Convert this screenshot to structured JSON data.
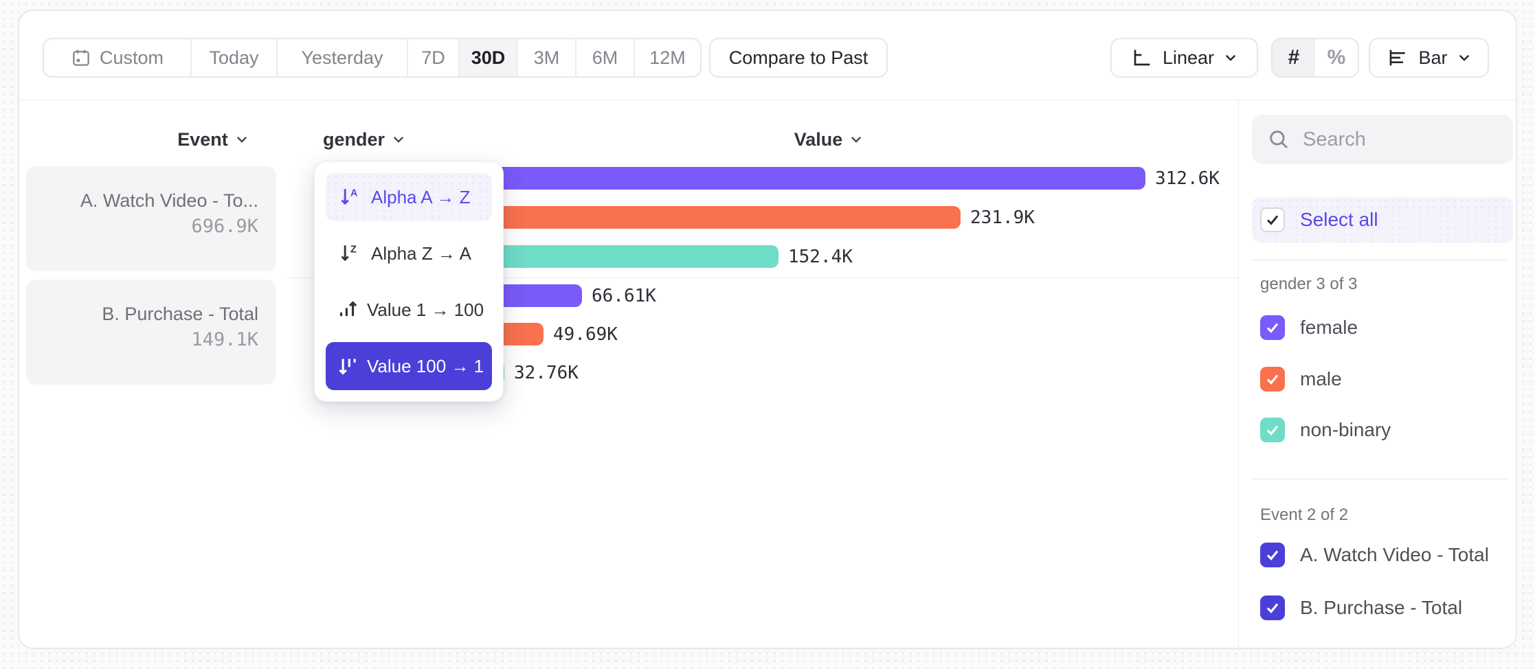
{
  "toolbar": {
    "date_ranges": [
      "Custom",
      "Today",
      "Yesterday",
      "7D",
      "30D",
      "3M",
      "6M",
      "12M"
    ],
    "selected_range": "30D",
    "compare_label": "Compare to Past",
    "scale_label": "Linear",
    "count_toggle": "#",
    "percent_toggle": "%",
    "chart_type_label": "Bar"
  },
  "columns": {
    "event": "Event",
    "breakdown": "gender",
    "value": "Value"
  },
  "event_cards": [
    {
      "title": "A. Watch Video - To...",
      "total": "696.9K"
    },
    {
      "title": "B. Purchase - Total",
      "total": "149.1K"
    }
  ],
  "sort_menu": {
    "items": [
      {
        "label": "Alpha A → Z",
        "icon": "sort-alpha-asc-icon",
        "state": "hovered"
      },
      {
        "label": "Alpha Z → A",
        "icon": "sort-alpha-desc-icon",
        "state": "default"
      },
      {
        "label": "Value 1 → 100",
        "icon": "sort-value-asc-icon",
        "state": "default"
      },
      {
        "label": "Value 100 → 1",
        "icon": "sort-value-desc-icon",
        "state": "selected"
      }
    ]
  },
  "chart_data": {
    "type": "bar",
    "orientation": "horizontal",
    "sort": "Value 100 → 1",
    "max_value": 312600,
    "groups": [
      {
        "event": "A. Watch Video - Total",
        "rows": [
          {
            "segment": "female",
            "value": 312600,
            "label": "312.6K",
            "color": "#7a5af8"
          },
          {
            "segment": "male",
            "value": 231900,
            "label": "231.9K",
            "color": "#f9714e"
          },
          {
            "segment": "non-binary",
            "value": 152400,
            "label": "152.4K",
            "color": "#6fdcc8"
          }
        ]
      },
      {
        "event": "B. Purchase - Total",
        "rows": [
          {
            "segment": "female",
            "value": 66610,
            "label": "66.61K",
            "color": "#7a5af8"
          },
          {
            "segment": "male",
            "value": 49690,
            "label": "49.69K",
            "color": "#f9714e"
          },
          {
            "segment": "non-binary",
            "value": 32760,
            "label": "32.76K",
            "color": "#6fdcc8"
          }
        ]
      }
    ]
  },
  "sidebar": {
    "search_placeholder": "Search",
    "select_all_label": "Select all",
    "sections": [
      {
        "heading": "gender 3 of 3",
        "items": [
          {
            "label": "female",
            "color": "#7a5af8",
            "checked": true
          },
          {
            "label": "male",
            "color": "#f9714e",
            "checked": true
          },
          {
            "label": "non-binary",
            "color": "#6fdcc8",
            "checked": true
          }
        ]
      },
      {
        "heading": "Event 2 of 2",
        "items": [
          {
            "label": "A. Watch Video - Total",
            "color": "#4b3fda",
            "checked": true
          },
          {
            "label": "B. Purchase - Total",
            "color": "#4b3fda",
            "checked": true
          }
        ]
      }
    ]
  },
  "colors": {
    "accent": "#584ae8",
    "selected_menu_bg": "#4b3fda",
    "bar_purple": "#7a5af8",
    "bar_orange": "#f9714e",
    "bar_teal": "#6fdcc8"
  }
}
